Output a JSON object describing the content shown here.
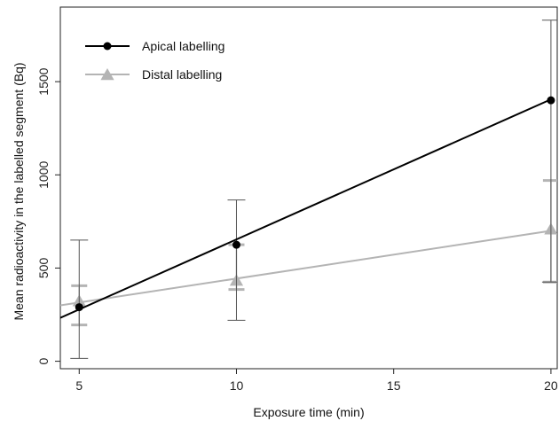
{
  "chart_data": {
    "type": "scatter",
    "xlabel": "Exposure time (min)",
    "ylabel": "Mean radioactivity in the labelled segment (Bq)",
    "xlim": [
      4.4,
      20.2
    ],
    "ylim": [
      -40,
      1900
    ],
    "xticks": [
      5,
      10,
      15,
      20
    ],
    "yticks": [
      0,
      500,
      1000,
      1500
    ],
    "grid": false,
    "legend_position": "top-left",
    "series": [
      {
        "name": "Apical labelling",
        "color": "#000000",
        "marker": "circle",
        "points": [
          {
            "x": 5,
            "y": 290,
            "err_low": 15,
            "err_high": 650
          },
          {
            "x": 10,
            "y": 625,
            "err_low": 220,
            "err_high": 865
          },
          {
            "x": 20,
            "y": 1400,
            "err_low": 425,
            "err_high": 1830
          }
        ],
        "fit": {
          "x": [
            4.4,
            20
          ],
          "y": [
            233,
            1405
          ]
        }
      },
      {
        "name": "Distal labelling",
        "color": "#b4b4b4",
        "marker": "triangle",
        "points": [
          {
            "x": 5,
            "y": 320,
            "err_low": 195,
            "err_high": 405
          },
          {
            "x": 10,
            "y": 430,
            "err_low": 385,
            "err_high": 625
          },
          {
            "x": 20,
            "y": 705,
            "err_low": 425,
            "err_high": 970
          }
        ],
        "fit": {
          "x": [
            4.4,
            20
          ],
          "y": [
            300,
            700
          ]
        }
      }
    ]
  }
}
